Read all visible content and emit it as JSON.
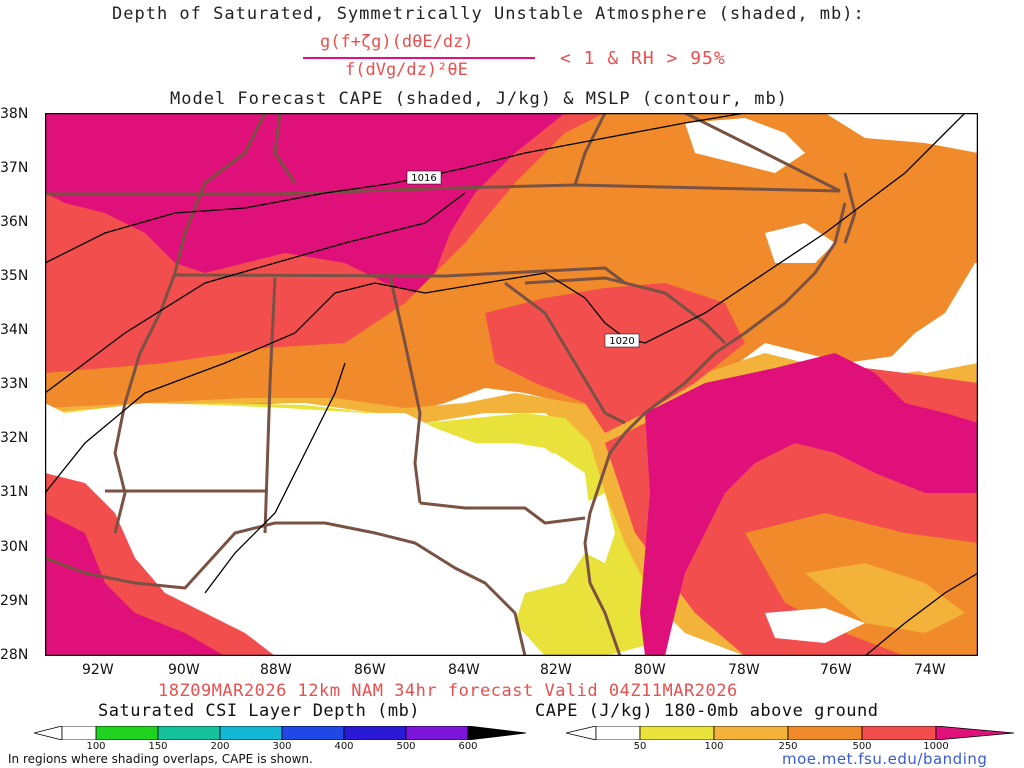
{
  "header": {
    "title_line1": "Depth of Saturated, Symmetrically Unstable Atmosphere (shaded, mb):",
    "numerator": "g(f+ζg)(dθE/dz)",
    "denominator": "f(dVg/dz)²θE",
    "condition": "< 1 & RH > 95%",
    "title_line3": "Model Forecast CAPE (shaded, J/kg) & MSLP (contour, mb)"
  },
  "map": {
    "lat_labels": [
      "38N",
      "37N",
      "36N",
      "35N",
      "34N",
      "33N",
      "32N",
      "31N",
      "30N",
      "29N",
      "28N"
    ],
    "lon_labels": [
      "92W",
      "90W",
      "88W",
      "86W",
      "84W",
      "82W",
      "80W",
      "78W",
      "76W",
      "74W"
    ],
    "isobar_labels": [
      "1016",
      "1020"
    ],
    "colors": {
      "magenta": "#e0107a",
      "red": "#f24e4e",
      "orange": "#f08a2a",
      "light_orange": "#f3b23a",
      "yellow": "#e9e23a",
      "border": "#7a5244"
    }
  },
  "footer": {
    "valid_line": "18Z09MAR2026 12km NAM 34hr forecast Valid 04Z11MAR2026",
    "csi_label": "Saturated CSI Layer Depth (mb)",
    "cape_label": "CAPE (J/kg) 180-0mb above ground",
    "csi_ticks": [
      "100",
      "150",
      "200",
      "300",
      "400",
      "500",
      "600"
    ],
    "cape_ticks": [
      "50",
      "100",
      "250",
      "500",
      "1000"
    ],
    "note": "In regions where shading overlaps, CAPE is shown.",
    "link": "moe.met.fsu.edu/banding"
  }
}
